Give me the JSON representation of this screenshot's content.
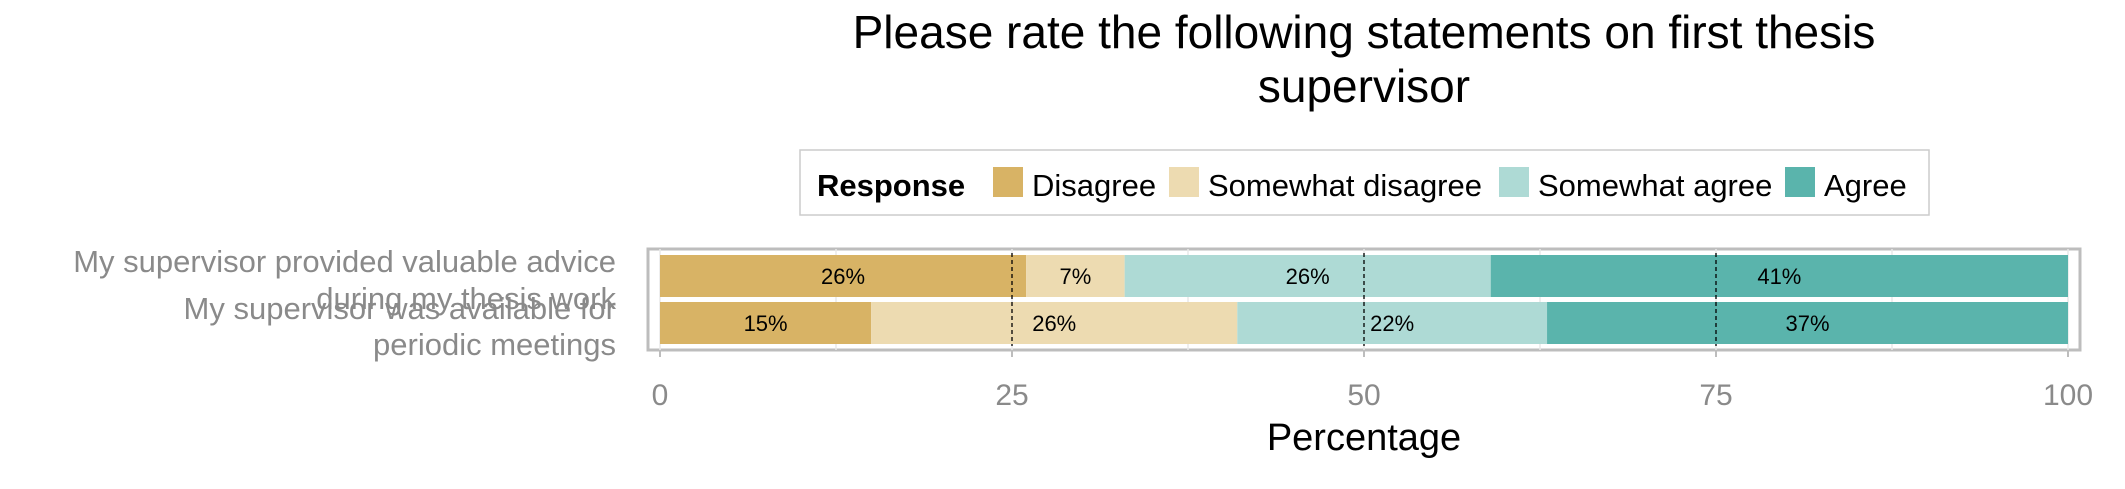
{
  "chart_data": {
    "type": "bar",
    "orientation": "horizontal",
    "stacked": true,
    "title": "Please rate the following statements on first thesis supervisor",
    "title_lines": [
      "Please rate the following statements on first thesis",
      "supervisor"
    ],
    "xlabel": "Percentage",
    "ylabel": "",
    "xlim": [
      0,
      100
    ],
    "xticks": [
      0,
      25,
      50,
      75,
      100
    ],
    "reference_lines": [
      25,
      50,
      75
    ],
    "grid": true,
    "legend": {
      "position": "top",
      "title": "Response",
      "entries": [
        "Disagree",
        "Somewhat disagree",
        "Somewhat agree",
        "Agree"
      ]
    },
    "categories": [
      "My supervisor provided valuable advice during my thesis work",
      "My supervisor was available for periodic meetings"
    ],
    "category_label_lines": [
      [
        "My supervisor provided valuable advice",
        "during my thesis work"
      ],
      [
        "My supervisor was available for",
        "periodic meetings"
      ]
    ],
    "series": [
      {
        "name": "Disagree",
        "color": "#D8B365",
        "values": [
          26,
          15
        ],
        "labels": [
          "26%",
          "15%"
        ]
      },
      {
        "name": "Somewhat disagree",
        "color": "#EDDBB1",
        "values": [
          7,
          26
        ],
        "labels": [
          "7%",
          "26%"
        ]
      },
      {
        "name": "Somewhat agree",
        "color": "#AEDAD5",
        "values": [
          26,
          22
        ],
        "labels": [
          "26%",
          "22%"
        ]
      },
      {
        "name": "Agree",
        "color": "#5AB4AC",
        "values": [
          41,
          37
        ],
        "labels": [
          "41%",
          "37%"
        ]
      }
    ]
  }
}
